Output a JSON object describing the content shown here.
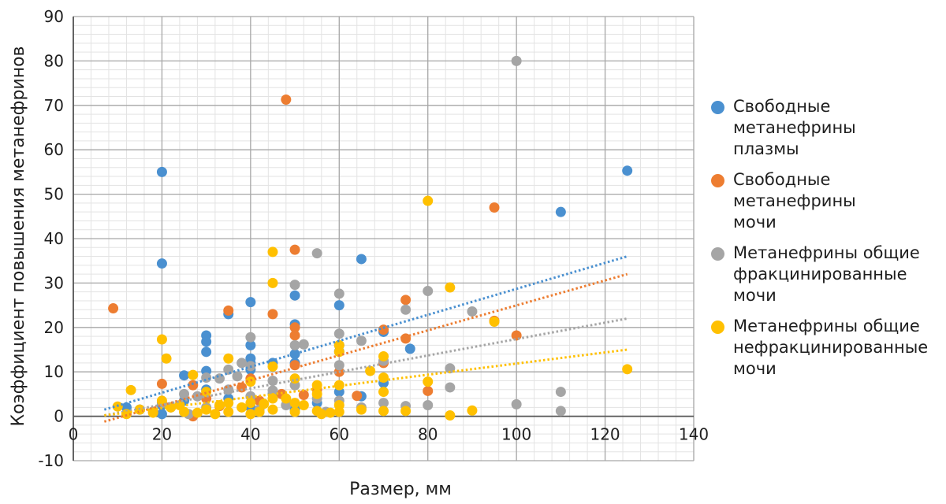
{
  "chart_data": {
    "type": "scatter",
    "xlabel": "Размер, мм",
    "ylabel": "Коэффициент повышения метанефринов",
    "xlim": [
      0,
      140
    ],
    "ylim": [
      -10,
      90
    ],
    "x_ticks": [
      "0",
      "20",
      "40",
      "60",
      "80",
      "100",
      "120",
      "140"
    ],
    "y_ticks": [
      "-10",
      "0",
      "10",
      "20",
      "30",
      "40",
      "50",
      "60",
      "70",
      "80",
      "90"
    ],
    "grid": true,
    "legend_position": "right",
    "trendlines": "linear, dotted",
    "series": [
      {
        "name": "Свободные\nметанефрины\nплазмы",
        "color": "#4a90d0",
        "points": [
          [
            20,
            55
          ],
          [
            20,
            34.4
          ],
          [
            35,
            23
          ],
          [
            40,
            25.7
          ],
          [
            30,
            18.2
          ],
          [
            30,
            16.8
          ],
          [
            30,
            14.5
          ],
          [
            30,
            10.2
          ],
          [
            25,
            9.2
          ],
          [
            40,
            16
          ],
          [
            40,
            13
          ],
          [
            40,
            12
          ],
          [
            40,
            10.5
          ],
          [
            45,
            12
          ],
          [
            50,
            27.2
          ],
          [
            50,
            20.7
          ],
          [
            50,
            14
          ],
          [
            50,
            12
          ],
          [
            60,
            25
          ],
          [
            60,
            16
          ],
          [
            60,
            14.6
          ],
          [
            65,
            35.4
          ],
          [
            65,
            4.5
          ],
          [
            70,
            19
          ],
          [
            70,
            7.5
          ],
          [
            76,
            15.2
          ],
          [
            110,
            46
          ],
          [
            125,
            55.3
          ],
          [
            15,
            1.5
          ],
          [
            20,
            2.5
          ],
          [
            25,
            3.5
          ],
          [
            35,
            4
          ],
          [
            45,
            5
          ],
          [
            55,
            3
          ],
          [
            60,
            5.5
          ],
          [
            40,
            2
          ],
          [
            30,
            6
          ],
          [
            50,
            1.5
          ],
          [
            20,
            0.5
          ],
          [
            12,
            2
          ]
        ]
      },
      {
        "name": "Свободные\nметанефрины\nмочи",
        "color": "#ed7d31",
        "points": [
          [
            9,
            24.3
          ],
          [
            20,
            7.3
          ],
          [
            27,
            7
          ],
          [
            33,
            2.3
          ],
          [
            35,
            23.8
          ],
          [
            40,
            8.5
          ],
          [
            45,
            23
          ],
          [
            48,
            71.3
          ],
          [
            50,
            37.5
          ],
          [
            50,
            20
          ],
          [
            50,
            18.2
          ],
          [
            50,
            11.5
          ],
          [
            52,
            4.8
          ],
          [
            60,
            10
          ],
          [
            64,
            4.6
          ],
          [
            70,
            19.5
          ],
          [
            70,
            12
          ],
          [
            75,
            26.2
          ],
          [
            75,
            17.5
          ],
          [
            80,
            5.7
          ],
          [
            95,
            47
          ],
          [
            95,
            21.5
          ],
          [
            100,
            18.2
          ],
          [
            27,
            0
          ],
          [
            47,
            5
          ],
          [
            38,
            6.5
          ],
          [
            18,
            1
          ],
          [
            30,
            4
          ],
          [
            42,
            3.5
          ],
          [
            55,
            6
          ]
        ]
      },
      {
        "name": "Метанефрины общие\nфракцинированные\nмочи",
        "color": "#a5a5a5",
        "points": [
          [
            100,
            80
          ],
          [
            55,
            36.7
          ],
          [
            50,
            29.6
          ],
          [
            60,
            27.6
          ],
          [
            80,
            28.2
          ],
          [
            75,
            24
          ],
          [
            90,
            23.6
          ],
          [
            40,
            17.8
          ],
          [
            40,
            11.3
          ],
          [
            35,
            10.5
          ],
          [
            38,
            12
          ],
          [
            45,
            8
          ],
          [
            50,
            16
          ],
          [
            52,
            16.2
          ],
          [
            60,
            18.6
          ],
          [
            60,
            11.5
          ],
          [
            65,
            17
          ],
          [
            70,
            12.5
          ],
          [
            85,
            10.8
          ],
          [
            85,
            6.5
          ],
          [
            80,
            2.5
          ],
          [
            100,
            2.7
          ],
          [
            110,
            5.5
          ],
          [
            110,
            1.2
          ],
          [
            25,
            5
          ],
          [
            28,
            4.5
          ],
          [
            30,
            8.7
          ],
          [
            33,
            8.5
          ],
          [
            35,
            6
          ],
          [
            37,
            9
          ],
          [
            40,
            4.5
          ],
          [
            45,
            5.8
          ],
          [
            50,
            7
          ],
          [
            55,
            4
          ],
          [
            60,
            3.5
          ],
          [
            65,
            2
          ],
          [
            70,
            3
          ],
          [
            75,
            2.3
          ],
          [
            20,
            3
          ],
          [
            22,
            2
          ],
          [
            26,
            0.5
          ],
          [
            30,
            2
          ],
          [
            42,
            1.5
          ],
          [
            48,
            2.5
          ],
          [
            57,
            1
          ]
        ]
      },
      {
        "name": "Метанефрины общие\nнефракцинированные\nмочи",
        "color": "#ffc000",
        "points": [
          [
            10,
            2.2
          ],
          [
            13,
            5.9
          ],
          [
            12,
            0.5
          ],
          [
            15,
            1.5
          ],
          [
            20,
            17.3
          ],
          [
            21,
            13
          ],
          [
            20,
            3.5
          ],
          [
            22,
            2
          ],
          [
            25,
            1
          ],
          [
            27,
            9.3
          ],
          [
            30,
            5.5
          ],
          [
            30,
            1.5
          ],
          [
            32,
            0.5
          ],
          [
            35,
            13
          ],
          [
            35,
            3
          ],
          [
            35,
            1
          ],
          [
            38,
            2
          ],
          [
            40,
            3
          ],
          [
            40,
            7.8
          ],
          [
            40,
            0.5
          ],
          [
            42,
            1
          ],
          [
            45,
            37
          ],
          [
            45,
            30
          ],
          [
            45,
            11.2
          ],
          [
            45,
            4
          ],
          [
            45,
            1.5
          ],
          [
            50,
            8.5
          ],
          [
            50,
            3
          ],
          [
            50,
            1
          ],
          [
            55,
            7
          ],
          [
            55,
            5
          ],
          [
            55,
            1.2
          ],
          [
            56,
            0.5
          ],
          [
            60,
            16
          ],
          [
            60,
            14.5
          ],
          [
            60,
            7
          ],
          [
            60,
            2.5
          ],
          [
            60,
            1
          ],
          [
            65,
            1.5
          ],
          [
            67,
            10.2
          ],
          [
            70,
            13.5
          ],
          [
            70,
            8.7
          ],
          [
            70,
            5.5
          ],
          [
            70,
            1.2
          ],
          [
            75,
            1.2
          ],
          [
            80,
            48.5
          ],
          [
            80,
            7.8
          ],
          [
            85,
            29
          ],
          [
            85,
            0.2
          ],
          [
            90,
            1.3
          ],
          [
            95,
            21.3
          ],
          [
            125,
            10.6
          ],
          [
            18,
            0.8
          ],
          [
            24,
            2.5
          ],
          [
            28,
            0.8
          ],
          [
            33,
            2.5
          ],
          [
            43,
            2.8
          ],
          [
            48,
            4
          ],
          [
            52,
            2.5
          ],
          [
            58,
            0.8
          ]
        ]
      }
    ],
    "trend_segments": [
      {
        "color": "#4a90d0",
        "from": [
          7,
          1.5
        ],
        "to": [
          125,
          36
        ]
      },
      {
        "color": "#ed7d31",
        "from": [
          7,
          -1.2
        ],
        "to": [
          125,
          32
        ]
      },
      {
        "color": "#a5a5a5",
        "from": [
          7,
          0.2
        ],
        "to": [
          125,
          22
        ]
      },
      {
        "color": "#ffc000",
        "from": [
          7,
          0.2
        ],
        "to": [
          125,
          15
        ]
      }
    ]
  }
}
